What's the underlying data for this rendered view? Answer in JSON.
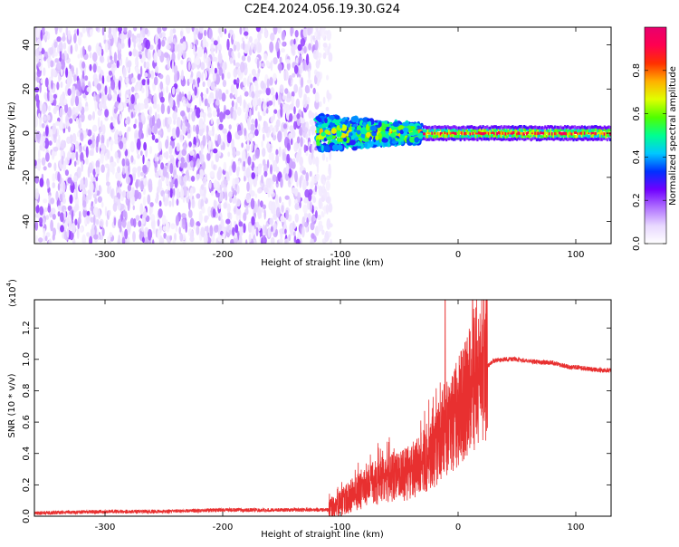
{
  "title": "C2E4.2024.056.19.30.G24",
  "chart_data": [
    {
      "type": "heatmap",
      "xlabel": "Height of straight line (km)",
      "ylabel": "Frequency (Hz)",
      "xlim": [
        -360,
        130
      ],
      "ylim": [
        -50,
        48
      ],
      "xticks": [
        -300,
        -200,
        -100,
        0,
        100
      ],
      "yticks": [
        -40,
        -20,
        0,
        20,
        40
      ],
      "colorbar": {
        "label": "Normalized spectral amplitude",
        "range": [
          0,
          1
        ],
        "ticks": [
          0.0,
          0.2,
          0.4,
          0.6,
          0.8
        ],
        "colormap": [
          "#ffffff",
          "#e8d8ff",
          "#b070ff",
          "#7000ff",
          "#0030ff",
          "#00c8ff",
          "#00ff90",
          "#50ff00",
          "#e0ff00",
          "#ffb000",
          "#ff3000",
          "#ff0050",
          "#e8006e"
        ]
      },
      "regions": [
        {
          "x": [
            -360,
            -120
          ],
          "freq_spread": [
            -50,
            48
          ],
          "amplitude": [
            0.05,
            0.2
          ],
          "description_level": "noise"
        },
        {
          "x": [
            -120,
            -30
          ],
          "freq_spread": [
            -8,
            8
          ],
          "amplitude": [
            0.3,
            0.8
          ]
        },
        {
          "x": [
            -30,
            130
          ],
          "freq_spread": [
            -3,
            3
          ],
          "amplitude": [
            0.5,
            0.95
          ]
        }
      ]
    },
    {
      "type": "line",
      "xlabel": "Height of straight line (km)",
      "ylabel": "SNR (10 * v/v)",
      "yscale_note": "(x10",
      "yscale_exp": "4",
      "yscale_close": ")",
      "xlim": [
        -360,
        130
      ],
      "ylim": [
        0,
        1.38
      ],
      "xticks": [
        -300,
        -200,
        -100,
        0,
        100
      ],
      "yticks": [
        0.0,
        0.2,
        0.4,
        0.6,
        0.8,
        1.0,
        1.2
      ],
      "series": [
        {
          "color": "#e83030",
          "x": [
            -360,
            -300,
            -250,
            -200,
            -150,
            -110,
            -100,
            -90,
            -80,
            -70,
            -60,
            -50,
            -40,
            -30,
            -20,
            -15,
            -12,
            -10,
            -5,
            0,
            10,
            20,
            30,
            40,
            50,
            60,
            70,
            80,
            90,
            95,
            100,
            110,
            120,
            130
          ],
          "y": [
            0.02,
            0.03,
            0.03,
            0.04,
            0.04,
            0.04,
            0.08,
            0.14,
            0.18,
            0.22,
            0.25,
            0.25,
            0.28,
            0.35,
            0.42,
            0.5,
            0.55,
            0.52,
            0.6,
            0.66,
            0.8,
            0.92,
            0.99,
            1.0,
            1.0,
            0.99,
            0.98,
            0.98,
            0.96,
            0.95,
            0.95,
            0.94,
            0.93,
            0.93
          ]
        }
      ],
      "spike": {
        "x": -11,
        "y": 1.38
      }
    }
  ]
}
